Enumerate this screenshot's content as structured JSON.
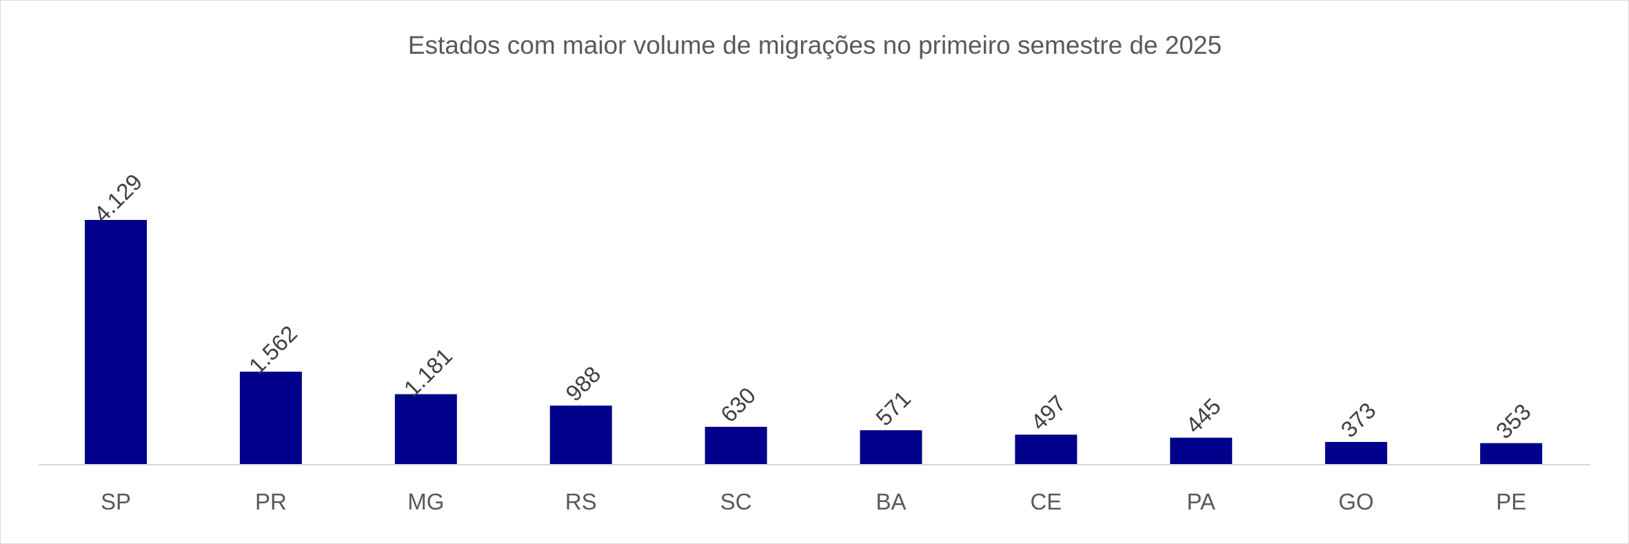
{
  "chart_data": {
    "type": "bar",
    "title": "Estados com maior volume de migrações no primeiro semestre de 2025",
    "categories": [
      "SP",
      "PR",
      "MG",
      "RS",
      "SC",
      "BA",
      "CE",
      "PA",
      "GO",
      "PE"
    ],
    "values": [
      4129,
      1562,
      1181,
      988,
      630,
      571,
      497,
      445,
      373,
      353
    ],
    "data_labels": [
      "4.129",
      "1.562",
      "1.181",
      "988",
      "630",
      "571",
      "497",
      "445",
      "373",
      "353"
    ],
    "xlabel": "",
    "ylabel": "",
    "ylim": [
      0,
      4500
    ],
    "bar_color": "#00008B",
    "axis_color": "#d9d9d9",
    "grid": false,
    "legend": "none"
  }
}
